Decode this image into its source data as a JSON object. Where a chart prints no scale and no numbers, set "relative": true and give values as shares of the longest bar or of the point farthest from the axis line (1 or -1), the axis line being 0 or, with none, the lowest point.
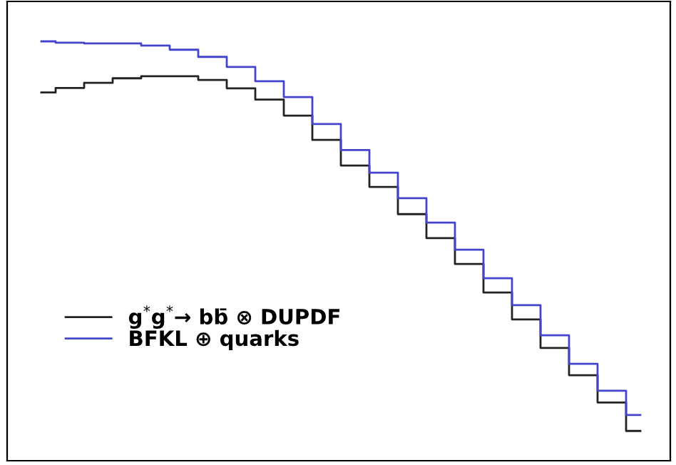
{
  "chart_data": {
    "type": "step",
    "relative": true,
    "legend": "bottom left",
    "categories": [
      null,
      null,
      null,
      null,
      null,
      null,
      null,
      null,
      null,
      null,
      null,
      null,
      null,
      null,
      null,
      null,
      null,
      null,
      null,
      null,
      null,
      null
    ],
    "series": [
      {
        "name": "g$^{*}$g$^{*}$→ bb̄ ⊗ DUPDF",
        "color": "#222222",
        "values": [
          0.878,
          0.889,
          0.901,
          0.912,
          0.917,
          0.917,
          0.908,
          0.888,
          0.861,
          0.823,
          0.765,
          0.704,
          0.653,
          0.588,
          0.531,
          0.469,
          0.401,
          0.337,
          0.269,
          0.204,
          0.139,
          0.071
        ]
      },
      {
        "name": "BFKL ⊕ quarks",
        "color": "#4444cc",
        "values": [
          1.0,
          0.997,
          0.995,
          0.995,
          0.99,
          0.98,
          0.963,
          0.939,
          0.905,
          0.867,
          0.803,
          0.741,
          0.687,
          0.626,
          0.568,
          0.503,
          0.435,
          0.371,
          0.299,
          0.231,
          0.167,
          0.109
        ]
      }
    ]
  }
}
